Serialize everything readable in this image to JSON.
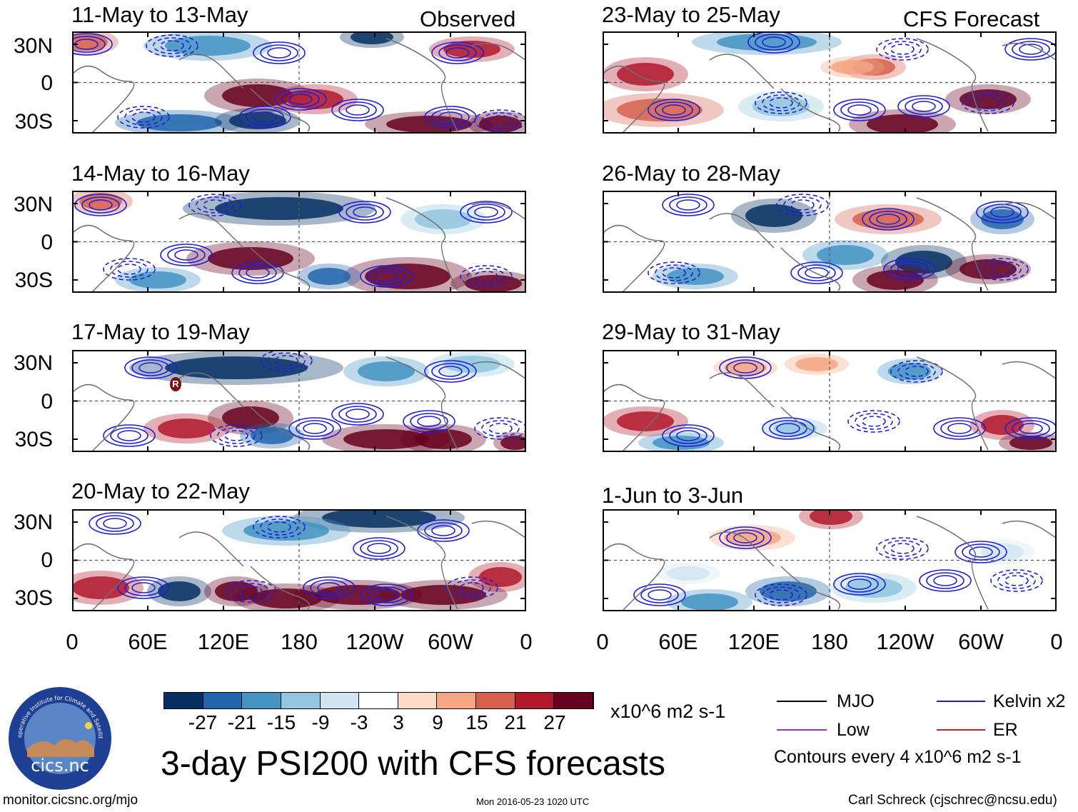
{
  "panels_left_tag": "Observed",
  "panels_right_tag": "CFS Forecast",
  "panels": [
    {
      "title": "11-May to 13-May"
    },
    {
      "title": "14-May to 16-May"
    },
    {
      "title": "17-May to 19-May"
    },
    {
      "title": "20-May to 22-May"
    },
    {
      "title": "23-May to 25-May"
    },
    {
      "title": "26-May to 28-May"
    },
    {
      "title": "29-May to 31-May"
    },
    {
      "title": "1-Jun to 3-Jun"
    }
  ],
  "lat_labels": [
    "30N",
    "0",
    "30S"
  ],
  "lon_labels": [
    "0",
    "60E",
    "120E",
    "180",
    "120W",
    "60W",
    "0"
  ],
  "storm_marker": "R",
  "colorbar": {
    "ticks": [
      "-27",
      "-21",
      "-15",
      "-9",
      "-3",
      "3",
      "9",
      "15",
      "21",
      "27"
    ],
    "units": "x10^6 m2 s-1",
    "colors": [
      "#053061",
      "#2166ac",
      "#4393c3",
      "#92c5de",
      "#d1e5f0",
      "#ffffff",
      "#fddbc7",
      "#f4a582",
      "#d6604d",
      "#b2182b",
      "#67001f"
    ]
  },
  "main_title": "3-day PSI200 with CFS forecasts",
  "legend": {
    "mjo": "MJO",
    "kelvin": "Kelvin x2",
    "low": "Low",
    "er": "ER",
    "contours": "Contours every 4 x10^6 m2 s-1",
    "colors": {
      "mjo": "#000000",
      "kelvin": "#1f1fd6",
      "low": "#9a32cd",
      "er": "#d02020"
    }
  },
  "logo": {
    "name": "cics.nc",
    "arc_text": "Cooperative Institute for Climate and Satellites"
  },
  "footer": {
    "left": "monitor.cicsnc.org/mjo",
    "center": "Mon 2016-05-23 1020 UTC",
    "right": "Carl Schreck (cjschrec@ncsu.edu)"
  }
}
